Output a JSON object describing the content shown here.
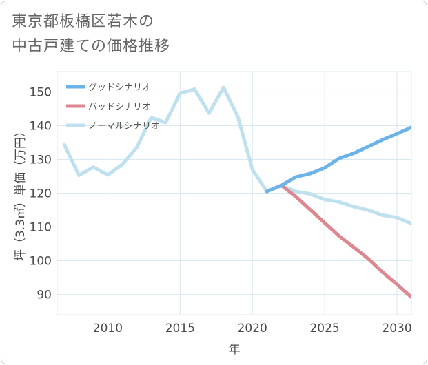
{
  "title": {
    "line1": "東京都板橋区若木の",
    "line2": "中古戸建ての価格推移"
  },
  "chart_data": {
    "type": "line",
    "xlabel": "年",
    "ylabel": "坪（3.3㎡）単価（万円）",
    "xlim": [
      2006.5,
      2031
    ],
    "ylim": [
      84,
      156
    ],
    "x_ticks": [
      "2010",
      "2015",
      "2020",
      "2025",
      "2030"
    ],
    "y_ticks": [
      "90",
      "100",
      "110",
      "120",
      "130",
      "140",
      "150"
    ],
    "legend_position": "top-left",
    "series": [
      {
        "name": "グッドシナリオ",
        "color": "#6bb3e8",
        "x": [
          2021,
          2022,
          2023,
          2024,
          2025,
          2026,
          2027,
          2028,
          2029,
          2030,
          2031
        ],
        "values": [
          120.5,
          122.3,
          124.8,
          125.8,
          127.5,
          130.3,
          131.8,
          133.8,
          135.8,
          137.6,
          139.5
        ]
      },
      {
        "name": "バッドシナリオ",
        "color": "#dd8790",
        "x": [
          2021,
          2022,
          2023,
          2024,
          2025,
          2026,
          2027,
          2028,
          2029,
          2030,
          2031
        ],
        "values": [
          120.5,
          122.3,
          119.0,
          115.1,
          111.2,
          107.3,
          104.0,
          100.6,
          96.6,
          93.0,
          89.2
        ]
      },
      {
        "name": "ノーマルシナリオ",
        "color": "#bfe0ee",
        "x": [
          2007,
          2008,
          2009,
          2010,
          2011,
          2012,
          2013,
          2014,
          2015,
          2016,
          2017,
          2018,
          2019,
          2020,
          2021,
          2022,
          2023,
          2024,
          2025,
          2026,
          2027,
          2028,
          2029,
          2030,
          2031
        ],
        "values": [
          134.3,
          125.3,
          127.7,
          125.4,
          128.5,
          133.5,
          142.4,
          140.9,
          149.6,
          150.8,
          143.7,
          151.3,
          142.6,
          127.0,
          120.5,
          122.3,
          120.5,
          119.8,
          118.1,
          117.4,
          116.0,
          115.0,
          113.5,
          112.8,
          111.0
        ]
      }
    ]
  }
}
